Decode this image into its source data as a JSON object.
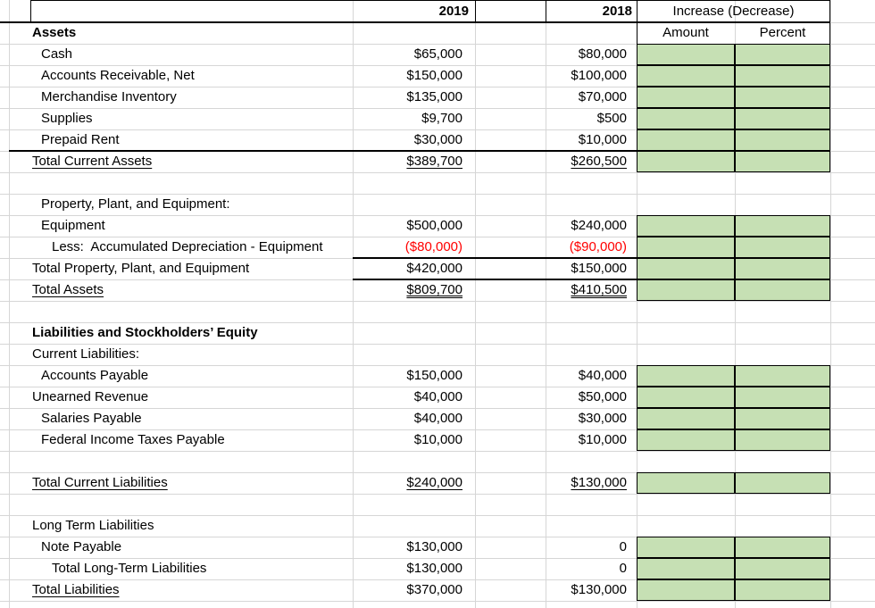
{
  "header": {
    "col_2019": "2019",
    "col_2018": "2018",
    "increase_decrease": "Increase (Decrease)",
    "amount": "Amount",
    "percent": "Percent"
  },
  "colors": {
    "input_cell_green": "#c6e0b4",
    "negative_red": "#ff0000",
    "gridline_gray": "#d6d6d6",
    "border_black": "#000000"
  },
  "rows": [
    {
      "label": "Assets",
      "indent": 0,
      "bold": true
    },
    {
      "label": "Cash",
      "indent": 1,
      "v2019": "$65,000",
      "v2018": "$80,000",
      "green": true
    },
    {
      "label": "Accounts Receivable, Net",
      "indent": 1,
      "v2019": "$150,000",
      "v2018": "$100,000",
      "green": true
    },
    {
      "label": "Merchandise Inventory",
      "indent": 1,
      "v2019": "$135,000",
      "v2018": "$70,000",
      "green": true
    },
    {
      "label": "Supplies",
      "indent": 1,
      "v2019": "$9,700",
      "v2018": "$500",
      "green": true
    },
    {
      "label": "Prepaid Rent",
      "indent": 1,
      "v2019": "$30,000",
      "v2018": "$10,000",
      "green": true,
      "border_bottom": "BE"
    },
    {
      "label": "Total Current Assets",
      "indent": 0,
      "label_underline": true,
      "v2019": "$389,700",
      "v2018": "$260,500",
      "value_underline": "single",
      "green": true
    },
    {},
    {
      "label": "Property, Plant, and Equipment:",
      "indent": 1
    },
    {
      "label": "Equipment",
      "indent": 1,
      "v2019": "$500,000",
      "v2018": "$240,000",
      "green": true
    },
    {
      "label": "Less:  Accumulated Depreciation - Equipment",
      "indent": 2,
      "v2019": "($80,000)",
      "v2018": "($90,000)",
      "red": true,
      "green": true,
      "border_bottom": "CE"
    },
    {
      "label": "Total Property, Plant, and Equipment",
      "indent": 0,
      "v2019": "$420,000",
      "v2018": "$150,000",
      "green": true,
      "border_bottom": "CE"
    },
    {
      "label": "Total Assets",
      "indent": 0,
      "label_underline": true,
      "v2019": "$809,700",
      "v2018": "$410,500",
      "value_underline": "double",
      "green": true
    },
    {},
    {
      "label": "Liabilities and Stockholders’ Equity",
      "indent": 0,
      "bold": true
    },
    {
      "label": "Current Liabilities:",
      "indent": 0
    },
    {
      "label": "Accounts Payable",
      "indent": 1,
      "v2019": "$150,000",
      "v2018": "$40,000",
      "green": true
    },
    {
      "label": "Unearned Revenue",
      "indent": 0,
      "v2019": "$40,000",
      "v2018": "$50,000",
      "green": true
    },
    {
      "label": "Salaries Payable",
      "indent": 1,
      "v2019": "$40,000",
      "v2018": "$30,000",
      "green": true
    },
    {
      "label": "Federal Income Taxes Payable",
      "indent": 1,
      "v2019": "$10,000",
      "v2018": "$10,000",
      "green": true
    },
    {},
    {
      "label": "Total Current Liabilities",
      "indent": 0,
      "label_underline": true,
      "v2019": "$240,000",
      "v2018": "$130,000",
      "value_underline": "single",
      "green": true
    },
    {},
    {
      "label": "Long Term Liabilities",
      "indent": 0
    },
    {
      "label": "Note Payable",
      "indent": 1,
      "v2019": "$130,000",
      "v2018": "0",
      "green": true
    },
    {
      "label": "Total Long-Term Liabilities",
      "indent": 2,
      "v2019": "$130,000",
      "v2018": "0",
      "green": true
    },
    {
      "label": "Total Liabilities",
      "indent": 0,
      "label_underline": true,
      "v2019": "$370,000",
      "v2018": "$130,000",
      "green": true
    }
  ]
}
